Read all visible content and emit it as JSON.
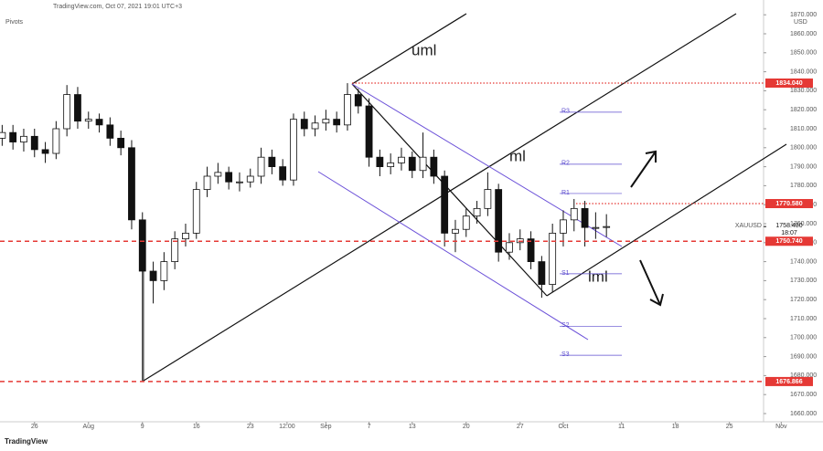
{
  "header": {
    "source": "TradingView.com, Oct 07, 2021 19:01 UTC+3",
    "indicator": "Pivots"
  },
  "footer": {
    "brand": "TradingView"
  },
  "chart_data": {
    "type": "candlestick",
    "symbol": "XAUUSD",
    "currency": "USD",
    "countdown": "18:07",
    "last": {
      "value": 1758.48,
      "label": "1758.480"
    },
    "annotations": [
      "uml",
      "ml",
      "lml"
    ],
    "x": [
      -3,
      -2,
      -1,
      0,
      1,
      2,
      3,
      4,
      5,
      6,
      7,
      8,
      9,
      10,
      11,
      12,
      13,
      14,
      15,
      16,
      17,
      18,
      19,
      20,
      21,
      22,
      23,
      24,
      25,
      26,
      27,
      28,
      29,
      30,
      31,
      32,
      33,
      34,
      35,
      36,
      37,
      38,
      39,
      40,
      41,
      42,
      43,
      44,
      45,
      46,
      47,
      48,
      49,
      50,
      51,
      52,
      53
    ],
    "open": [
      1805,
      1808,
      1803,
      1806,
      1799,
      1797,
      1810,
      1828,
      1814,
      1815,
      1812,
      1805,
      1800,
      1762,
      1735,
      1730,
      1740,
      1752,
      1755,
      1778,
      1785,
      1787,
      1782,
      1782,
      1785,
      1795,
      1790,
      1783,
      1815,
      1810,
      1813,
      1815,
      1812,
      1828,
      1822,
      1795,
      1790,
      1792,
      1795,
      1788,
      1795,
      1785,
      1755,
      1757,
      1764,
      1768,
      1778,
      1745,
      1750,
      1752,
      1740,
      1728,
      1755,
      1762,
      1768,
      1758,
      1758
    ],
    "high": [
      1812,
      1812,
      1810,
      1810,
      1803,
      1814,
      1833,
      1832,
      1819,
      1818,
      1816,
      1809,
      1804,
      1766,
      1740,
      1745,
      1756,
      1760,
      1782,
      1790,
      1792,
      1790,
      1787,
      1789,
      1800,
      1799,
      1794,
      1818,
      1819,
      1817,
      1820,
      1819,
      1834,
      1831,
      1826,
      1799,
      1797,
      1800,
      1798,
      1808,
      1799,
      1788,
      1762,
      1768,
      1772,
      1787,
      1781,
      1755,
      1757,
      1756,
      1743,
      1760,
      1767,
      1773,
      1772,
      1766,
      1765
    ],
    "low": [
      1801,
      1799,
      1798,
      1795,
      1792,
      1794,
      1806,
      1810,
      1810,
      1808,
      1801,
      1796,
      1757,
      1677,
      1718,
      1725,
      1736,
      1748,
      1752,
      1774,
      1781,
      1778,
      1777,
      1779,
      1781,
      1786,
      1780,
      1780,
      1806,
      1806,
      1809,
      1808,
      1809,
      1818,
      1790,
      1785,
      1786,
      1788,
      1784,
      1784,
      1781,
      1748,
      1745,
      1753,
      1760,
      1764,
      1740,
      1741,
      1746,
      1736,
      1721,
      1724,
      1748,
      1756,
      1748,
      1752,
      1753
    ],
    "close": [
      1808,
      1803,
      1806,
      1799,
      1797,
      1810,
      1828,
      1814,
      1815,
      1812,
      1805,
      1800,
      1762,
      1735,
      1730,
      1740,
      1752,
      1755,
      1778,
      1785,
      1787,
      1782,
      1782,
      1785,
      1795,
      1790,
      1783,
      1815,
      1810,
      1813,
      1815,
      1812,
      1828,
      1822,
      1795,
      1790,
      1792,
      1795,
      1788,
      1795,
      1785,
      1755,
      1757,
      1764,
      1768,
      1778,
      1745,
      1750,
      1752,
      1740,
      1728,
      1755,
      1762,
      1768,
      1758,
      1758,
      1758.48
    ],
    "levels": [
      {
        "value": 1834.04,
        "label": "1834.040",
        "style": "dotted"
      },
      {
        "value": 1770.58,
        "label": "1770.580",
        "style": "dotted"
      },
      {
        "value": 1750.74,
        "label": "1750.740",
        "style": "dashed"
      },
      {
        "value": 1676.866,
        "label": "1676.866",
        "style": "dashed"
      }
    ],
    "level_color": "#e53935",
    "pivots": [
      {
        "name": "R3",
        "value": 1818.7
      },
      {
        "name": "R2",
        "value": 1791.3
      },
      {
        "name": "R1",
        "value": 1775.9
      },
      {
        "name": "S1",
        "value": 1733.6
      },
      {
        "name": "S2",
        "value": 1706
      },
      {
        "name": "S3",
        "value": 1690.7
      }
    ],
    "pivot_color": "#5c4ccf",
    "xlim": [
      -3.2,
      73.07
    ],
    "ylim": [
      1655.67,
      1877.79
    ],
    "xticks": [
      {
        "value": 0,
        "label": "26"
      },
      {
        "value": 5,
        "label": "Aug"
      },
      {
        "value": 10,
        "label": "9"
      },
      {
        "value": 15,
        "label": "16"
      },
      {
        "value": 20,
        "label": "23"
      },
      {
        "value": 23.4,
        "label": "12:00"
      },
      {
        "value": 27,
        "label": "Sep"
      },
      {
        "value": 31,
        "label": "7"
      },
      {
        "value": 35,
        "label": "13"
      },
      {
        "value": 40,
        "label": "20"
      },
      {
        "value": 45,
        "label": "27"
      },
      {
        "value": 49,
        "label": "Oct"
      },
      {
        "value": 54.4,
        "label": "11"
      },
      {
        "value": 59.4,
        "label": "18"
      },
      {
        "value": 64.4,
        "label": "25"
      },
      {
        "value": 69.2,
        "label": "Nov"
      }
    ],
    "yticks": [
      {
        "value": 1660,
        "label": "1660.000"
      },
      {
        "value": 1670,
        "label": "1670.000"
      },
      {
        "value": 1680,
        "label": "1680.000"
      },
      {
        "value": 1690,
        "label": "1690.000"
      },
      {
        "value": 1700,
        "label": "1700.000"
      },
      {
        "value": 1710,
        "label": "1710.000"
      },
      {
        "value": 1720,
        "label": "1720.000"
      },
      {
        "value": 1730,
        "label": "1730.000"
      },
      {
        "value": 1740,
        "label": "1740.000"
      },
      {
        "value": 1750,
        "label": "1750.000"
      },
      {
        "value": 1760,
        "label": "1760.000"
      },
      {
        "value": 1770,
        "label": "1770.000"
      },
      {
        "value": 1780,
        "label": "1780.000"
      },
      {
        "value": 1790,
        "label": "1790.000"
      },
      {
        "value": 1800,
        "label": "1800.000"
      },
      {
        "value": 1810,
        "label": "1810.000"
      },
      {
        "value": 1820,
        "label": "1820.000"
      },
      {
        "value": 1830,
        "label": "1830.000"
      },
      {
        "value": 1840,
        "label": "1840.000"
      },
      {
        "value": 1850,
        "label": "1850.000"
      },
      {
        "value": 1860,
        "label": "1860.000"
      },
      {
        "value": 1870,
        "label": "1870.000"
      }
    ]
  }
}
